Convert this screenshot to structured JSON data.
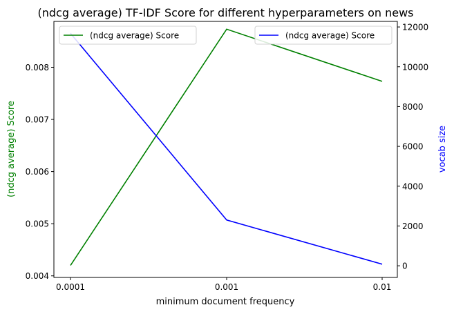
{
  "chart_data": {
    "type": "line",
    "title": "(ndcg average) TF-IDF Score for different hyperparameters on news",
    "xlabel": "minimum document frequency",
    "x_categories": [
      "0.0001",
      "0.001",
      "0.01"
    ],
    "left_axis": {
      "label": "(ndcg average) Score",
      "color": "#008000",
      "ylim": [
        0.00397,
        0.00888
      ],
      "ticks": [
        "0.004",
        "0.005",
        "0.006",
        "0.007",
        "0.008"
      ]
    },
    "right_axis": {
      "label": "vocab size",
      "color": "#0000ff",
      "ylim": [
        -585,
        12280
      ],
      "ticks": [
        "0",
        "2000",
        "4000",
        "6000",
        "8000",
        "10000",
        "12000"
      ]
    },
    "series": [
      {
        "name": "(ndcg average) Score",
        "axis": "left",
        "color": "#008000",
        "values": [
          0.0042,
          0.00873,
          0.00773
        ]
      },
      {
        "name": "(ndcg average) Score",
        "axis": "right",
        "color": "#0000ff",
        "values": [
          11680,
          2300,
          80
        ]
      }
    ],
    "legends": [
      {
        "placement": "upper-left",
        "entries": [
          "(ndcg average) Score"
        ],
        "colors": [
          "#008000"
        ]
      },
      {
        "placement": "upper-right",
        "entries": [
          "(ndcg average) Score"
        ],
        "colors": [
          "#0000ff"
        ]
      }
    ],
    "grid": false
  }
}
